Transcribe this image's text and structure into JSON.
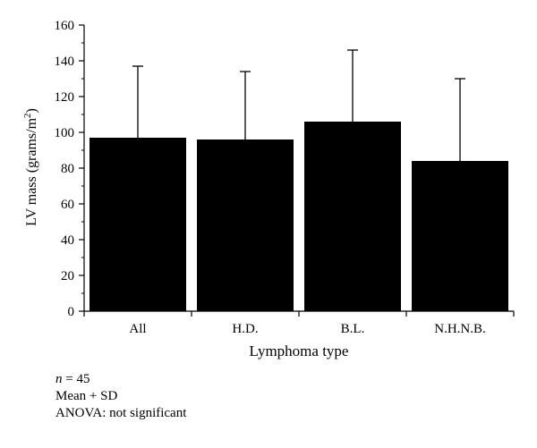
{
  "chart_data": {
    "type": "bar",
    "categories": [
      "All",
      "H.D.",
      "B.L.",
      "N.H.N.B."
    ],
    "values": [
      97,
      96,
      106,
      84
    ],
    "error_plus": [
      40,
      38,
      40,
      46
    ],
    "ylabel": "LV mass (grams/m²)",
    "ylabel_main": "LV mass (grams/m",
    "ylabel_sup": "2",
    "ylabel_close": ")",
    "xlabel": "Lymphoma type",
    "ylim": [
      0,
      160
    ],
    "yticks": [
      "0",
      "20",
      "40",
      "60",
      "80",
      "100",
      "120",
      "140",
      "160"
    ],
    "grid": false,
    "bar_color": "#000000"
  },
  "notes": {
    "n_label": "n",
    "n_value": " = 45",
    "stat_line": "Mean + SD",
    "anova_line": "ANOVA: not significant"
  }
}
